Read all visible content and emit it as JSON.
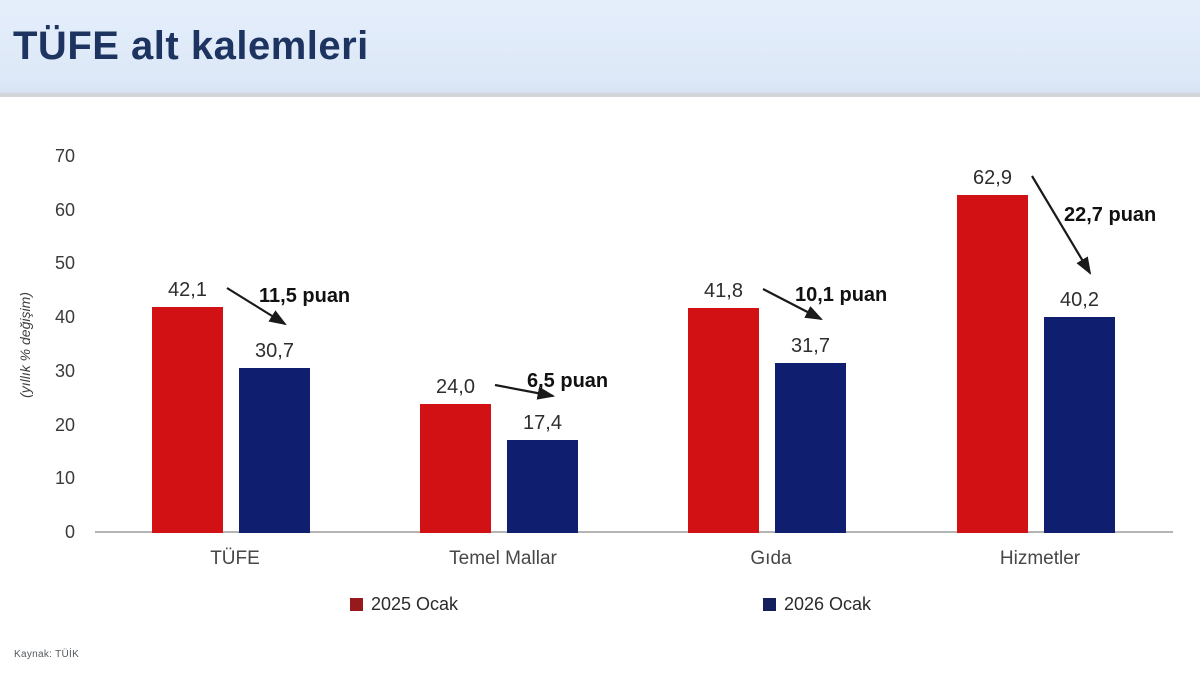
{
  "header": {
    "title": "TÜFE alt kalemleri"
  },
  "source": "Kaynak: TÜİK",
  "colors": {
    "header_bg": "#dde8f8",
    "title_text": "#1d3461",
    "bar_red": "#d21114",
    "bar_navy": "#0f1e6e",
    "legend_red": "#97191c",
    "legend_navy": "#141f5c",
    "axis_line": "#b5b5b5",
    "annotation_text": "#111111"
  },
  "chart_data": {
    "type": "bar",
    "title": "TÜFE alt kalemleri",
    "xlabel": "",
    "ylabel": "(yıllık % değişim)",
    "ylim": [
      0,
      70
    ],
    "yticks": [
      0,
      10,
      20,
      30,
      40,
      50,
      60,
      70
    ],
    "grid": false,
    "legend_position": "bottom",
    "categories": [
      "TÜFE",
      "Temel Mallar",
      "Gıda",
      "Hizmetler"
    ],
    "series": [
      {
        "name": "2025 Ocak",
        "color": "#d21114",
        "legend_color": "#97191c",
        "values": [
          42.1,
          24.0,
          41.8,
          62.9
        ],
        "value_labels": [
          "42,1",
          "24,0",
          "41,8",
          "62,9"
        ]
      },
      {
        "name": "2026 Ocak",
        "color": "#0f1e6e",
        "legend_color": "#141f5c",
        "values": [
          30.7,
          17.4,
          31.7,
          40.2
        ],
        "value_labels": [
          "30,7",
          "17,4",
          "31,7",
          "40,2"
        ]
      }
    ],
    "annotations": [
      {
        "category": "TÜFE",
        "text": "11,5 puan"
      },
      {
        "category": "Temel Mallar",
        "text": "6,5 puan"
      },
      {
        "category": "Gıda",
        "text": "10,1 puan"
      },
      {
        "category": "Hizmetler",
        "text": "22,7 puan"
      }
    ]
  }
}
